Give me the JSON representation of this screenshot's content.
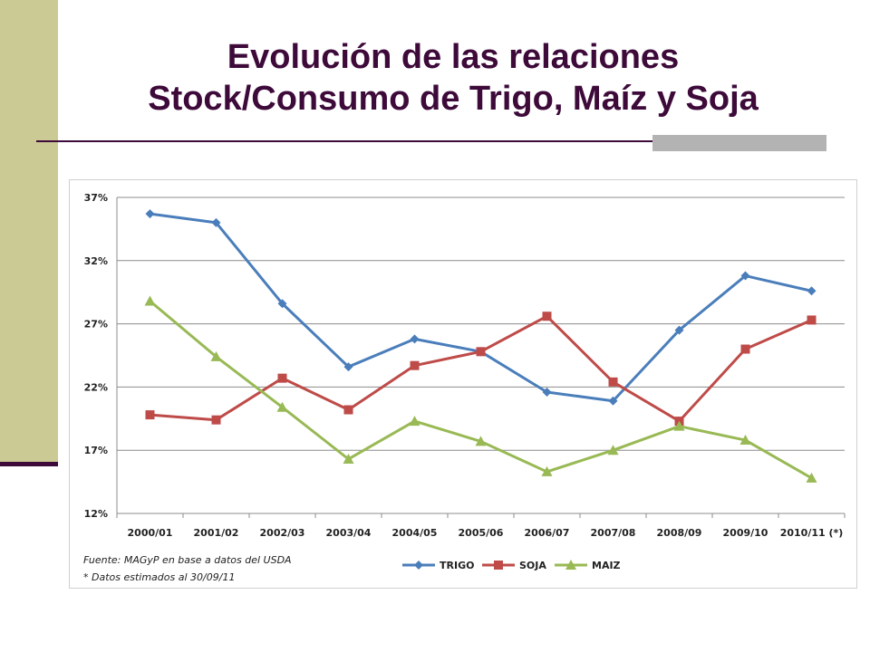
{
  "slide": {
    "title_line1": "Evolución de las relaciones",
    "title_line2": "Stock/Consumo de Trigo, Maíz y Soja"
  },
  "notes": {
    "source": "Fuente: MAGyP en base a datos del USDA",
    "estimate": "* Datos estimados al 30/09/11"
  },
  "colors": {
    "title": "#3d0a3a",
    "sidebar": "#cbc994",
    "TRIGO": "#4a7ebb",
    "SOJA": "#be4b48",
    "MAIZ": "#98b954"
  },
  "chart_data": {
    "type": "line",
    "title": "",
    "xlabel": "",
    "ylabel": "",
    "categories": [
      "2000/01",
      "2001/02",
      "2002/03",
      "2003/04",
      "2004/05",
      "2005/06",
      "2006/07",
      "2007/08",
      "2008/09",
      "2009/10",
      "2010/11 (*)"
    ],
    "ylim": [
      12,
      37
    ],
    "yticks": [
      12,
      17,
      22,
      27,
      32,
      37
    ],
    "ytick_labels": [
      "12%",
      "17%",
      "22%",
      "27%",
      "32%",
      "37%"
    ],
    "grid": true,
    "legend_position": "bottom",
    "series": [
      {
        "name": "TRIGO",
        "marker": "diamond",
        "values": [
          35.7,
          35.0,
          28.6,
          23.6,
          25.8,
          24.8,
          21.6,
          20.9,
          26.5,
          30.8,
          29.6
        ]
      },
      {
        "name": "SOJA",
        "marker": "square",
        "values": [
          19.8,
          19.4,
          22.7,
          20.2,
          23.7,
          24.8,
          27.6,
          22.4,
          19.3,
          25.0,
          27.3
        ]
      },
      {
        "name": "MAIZ",
        "marker": "triangle",
        "values": [
          28.8,
          24.4,
          20.4,
          16.3,
          19.3,
          17.7,
          15.3,
          17.0,
          18.9,
          17.8,
          14.8
        ]
      }
    ]
  }
}
